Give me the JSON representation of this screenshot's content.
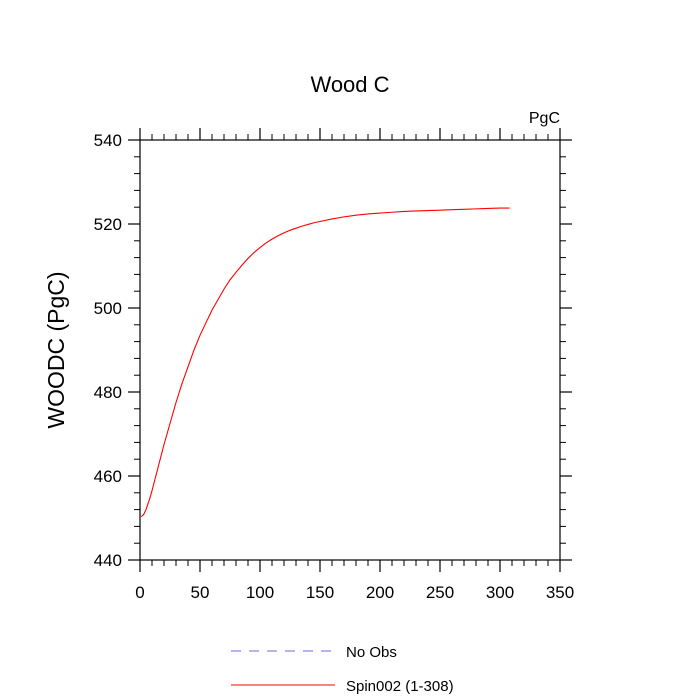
{
  "chart_data": {
    "type": "line",
    "title": "Wood C",
    "units_label": "PgC",
    "xlabel": "",
    "ylabel": "WOODC  (PgC)",
    "xlim": [
      0,
      350
    ],
    "ylim": [
      440,
      540
    ],
    "x_ticks": [
      0,
      50,
      100,
      150,
      200,
      250,
      300,
      350
    ],
    "y_ticks": [
      440,
      460,
      480,
      500,
      520,
      540
    ],
    "grid": false,
    "legend_position": "bottom",
    "series": [
      {
        "name": "No Obs",
        "color": "#6b6bdc",
        "dash": "dashed",
        "x": [],
        "y": []
      },
      {
        "name": "Spin002 (1-308)",
        "color": "#ff0000",
        "dash": "solid",
        "x": [
          1,
          3,
          5,
          8,
          10,
          15,
          20,
          25,
          30,
          35,
          40,
          45,
          50,
          55,
          60,
          65,
          70,
          75,
          80,
          85,
          90,
          95,
          100,
          105,
          110,
          115,
          120,
          125,
          130,
          135,
          140,
          145,
          150,
          160,
          170,
          180,
          190,
          200,
          210,
          220,
          230,
          240,
          250,
          260,
          270,
          280,
          290,
          300,
          305,
          308
        ],
        "y": [
          450.3,
          450.8,
          452.0,
          454.5,
          456.5,
          462.0,
          467.5,
          472.5,
          477.5,
          482.0,
          486.0,
          490.0,
          493.5,
          496.5,
          499.5,
          502.0,
          504.5,
          506.7,
          508.5,
          510.2,
          511.8,
          513.2,
          514.4,
          515.5,
          516.4,
          517.2,
          517.9,
          518.5,
          519.0,
          519.5,
          519.9,
          520.3,
          520.6,
          521.2,
          521.7,
          522.1,
          522.4,
          522.6,
          522.8,
          523.0,
          523.1,
          523.2,
          523.3,
          523.4,
          523.5,
          523.6,
          523.7,
          523.8,
          523.8,
          523.8
        ]
      }
    ]
  }
}
